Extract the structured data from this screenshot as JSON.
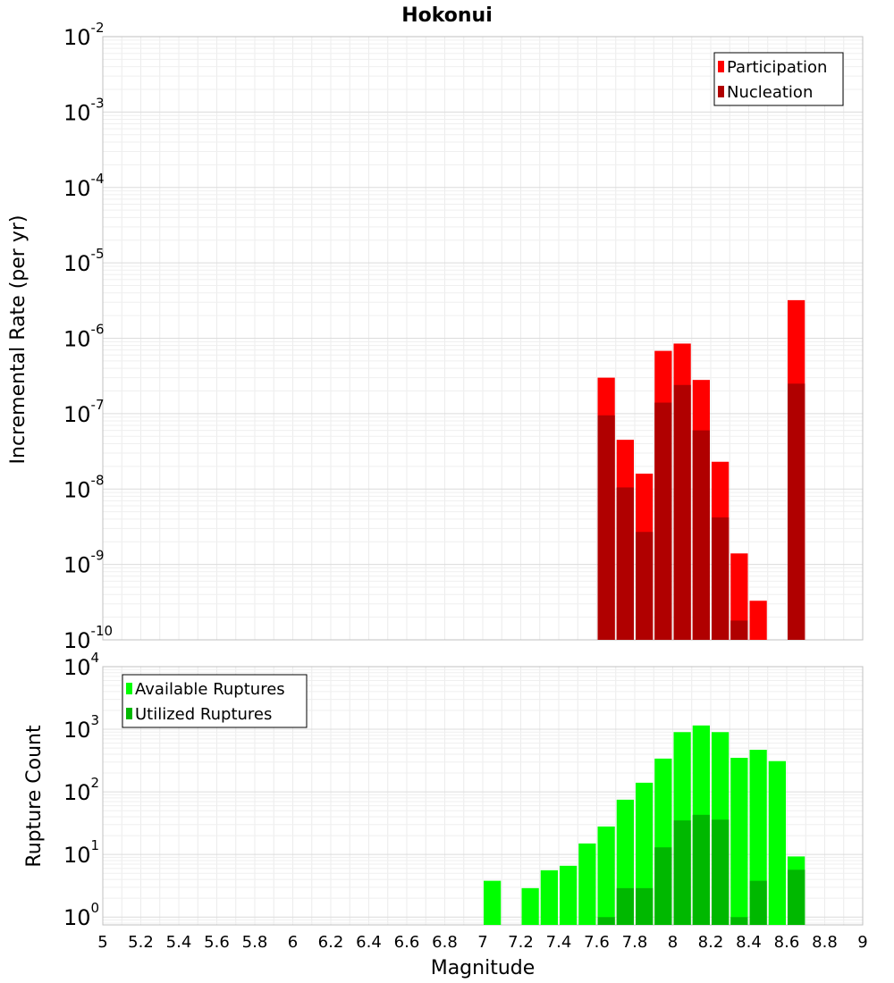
{
  "chart_data": [
    {
      "type": "bar",
      "title": "Hokonui",
      "xlabel": "",
      "ylabel": "Incremental Rate (per yr)",
      "yscale": "log",
      "xlim": [
        5,
        9
      ],
      "ylim": [
        1e-10,
        0.01
      ],
      "y_tick_exponents": [
        -2,
        -3,
        -4,
        -5,
        -6,
        -7,
        -8,
        -9,
        -10
      ],
      "legend_position": "top-right",
      "grid": true,
      "x": [
        7.65,
        7.75,
        7.85,
        7.95,
        8.05,
        8.15,
        8.25,
        8.35,
        8.45,
        8.65
      ],
      "series": [
        {
          "name": "Participation",
          "color": "#ff0000",
          "values": [
            3e-07,
            4.5e-08,
            1.6e-08,
            6.8e-07,
            8.5e-07,
            2.8e-07,
            2.3e-08,
            1.4e-09,
            3.3e-10,
            3.2e-06
          ]
        },
        {
          "name": "Nucleation",
          "color": "#b00000",
          "values": [
            9.5e-08,
            1.05e-08,
            2.7e-09,
            1.4e-07,
            2.4e-07,
            6e-08,
            4.2e-09,
            1.8e-10,
            null,
            2.5e-07
          ]
        }
      ]
    },
    {
      "type": "bar",
      "title": "",
      "xlabel": "Magnitude",
      "ylabel": "Rupture Count",
      "yscale": "log",
      "xlim": [
        5,
        9
      ],
      "ylim": [
        0.75,
        10000
      ],
      "y_tick_exponents": [
        4,
        3,
        2,
        1,
        0
      ],
      "x_ticks": [
        "5",
        "5.2",
        "5.4",
        "5.6",
        "5.8",
        "6",
        "6.2",
        "6.4",
        "6.6",
        "6.8",
        "7",
        "7.2",
        "7.4",
        "7.6",
        "7.8",
        "8",
        "8.2",
        "8.4",
        "8.6",
        "8.8",
        "9"
      ],
      "legend_position": "top-left",
      "grid": true,
      "x": [
        7.05,
        7.25,
        7.35,
        7.45,
        7.55,
        7.65,
        7.75,
        7.85,
        7.95,
        8.05,
        8.15,
        8.25,
        8.35,
        8.45,
        8.55,
        8.65
      ],
      "series": [
        {
          "name": "Available Ruptures",
          "color": "#00ff00",
          "values": [
            3.8,
            2.9,
            5.6,
            6.6,
            15,
            28,
            75,
            140,
            340,
            900,
            1150,
            900,
            350,
            470,
            310,
            9.3
          ]
        },
        {
          "name": "Utilized Ruptures",
          "color": "#00b800",
          "values": [
            null,
            null,
            null,
            null,
            null,
            1,
            2.9,
            2.9,
            13,
            35,
            43,
            36,
            1,
            3.8,
            null,
            5.7
          ]
        }
      ]
    }
  ]
}
